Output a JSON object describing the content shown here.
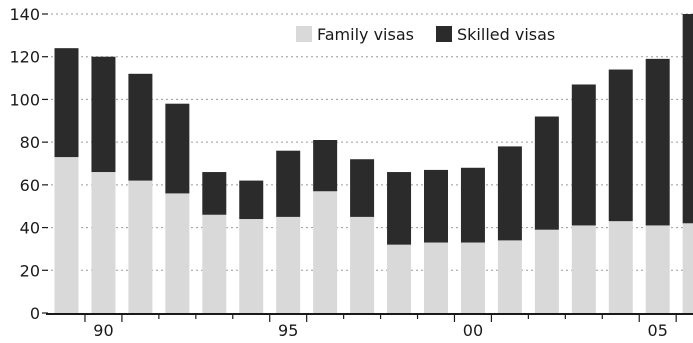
{
  "chart_data": {
    "type": "bar",
    "stacked": true,
    "categories": [
      "1989",
      "1990",
      "1991",
      "1992",
      "1993",
      "1994",
      "1995",
      "1996",
      "1997",
      "1998",
      "1999",
      "2000",
      "2001",
      "2002",
      "2003",
      "2004",
      "2005",
      "2006"
    ],
    "x_tick_labels": [
      {
        "category": "1990",
        "label": "90"
      },
      {
        "category": "1995",
        "label": "95"
      },
      {
        "category": "2000",
        "label": "00"
      },
      {
        "category": "2005",
        "label": "05"
      }
    ],
    "series": [
      {
        "name": "Family visas",
        "color": "#d9d9d9",
        "values": [
          73,
          66,
          62,
          56,
          46,
          44,
          45,
          57,
          45,
          32,
          33,
          33,
          34,
          39,
          41,
          43,
          41,
          42
        ]
      },
      {
        "name": "Skilled visas",
        "color": "#2b2b2b",
        "values": [
          51,
          54,
          50,
          42,
          20,
          18,
          31,
          24,
          27,
          34,
          34,
          35,
          44,
          53,
          66,
          71,
          78,
          98
        ]
      }
    ],
    "ylim": [
      0,
      140
    ],
    "y_ticks": [
      0,
      20,
      40,
      60,
      80,
      100,
      120,
      140
    ],
    "grid": true,
    "legend_position": "top-right"
  }
}
